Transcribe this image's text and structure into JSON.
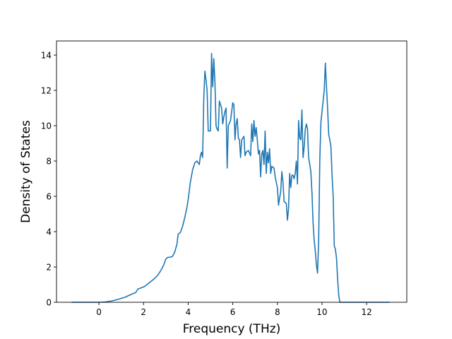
{
  "chart_data": {
    "type": "line",
    "title": "",
    "xlabel": "Frequency (THz)",
    "ylabel": "Density of States",
    "xlim": [
      -1.9,
      13.8
    ],
    "ylim": [
      0,
      14.8
    ],
    "xticks": [
      0,
      2,
      4,
      6,
      8,
      10,
      12
    ],
    "yticks": [
      0,
      2,
      4,
      6,
      8,
      10,
      12,
      14
    ],
    "grid": false,
    "legend": "none",
    "series": [
      {
        "color": "#1f77b4",
        "points": [
          [
            -1.2,
            0
          ],
          [
            0.0,
            0
          ],
          [
            0.3,
            0.02
          ],
          [
            0.6,
            0.08
          ],
          [
            0.9,
            0.18
          ],
          [
            1.2,
            0.3
          ],
          [
            1.4,
            0.42
          ],
          [
            1.55,
            0.5
          ],
          [
            1.65,
            0.55
          ],
          [
            1.75,
            0.75
          ],
          [
            1.9,
            0.82
          ],
          [
            2.05,
            0.9
          ],
          [
            2.2,
            1.05
          ],
          [
            2.35,
            1.2
          ],
          [
            2.5,
            1.35
          ],
          [
            2.65,
            1.55
          ],
          [
            2.8,
            1.85
          ],
          [
            2.9,
            2.1
          ],
          [
            3.0,
            2.45
          ],
          [
            3.1,
            2.55
          ],
          [
            3.2,
            2.55
          ],
          [
            3.3,
            2.6
          ],
          [
            3.4,
            2.85
          ],
          [
            3.5,
            3.3
          ],
          [
            3.55,
            3.85
          ],
          [
            3.6,
            3.9
          ],
          [
            3.65,
            3.95
          ],
          [
            3.75,
            4.3
          ],
          [
            3.85,
            4.8
          ],
          [
            3.95,
            5.4
          ],
          [
            4.0,
            5.8
          ],
          [
            4.1,
            6.8
          ],
          [
            4.2,
            7.5
          ],
          [
            4.3,
            7.9
          ],
          [
            4.4,
            8.0
          ],
          [
            4.5,
            7.8
          ],
          [
            4.55,
            8.3
          ],
          [
            4.6,
            8.5
          ],
          [
            4.65,
            8.2
          ],
          [
            4.7,
            11.5
          ],
          [
            4.75,
            13.1
          ],
          [
            4.8,
            12.6
          ],
          [
            4.85,
            12.0
          ],
          [
            4.9,
            9.7
          ],
          [
            5.0,
            9.7
          ],
          [
            5.05,
            14.1
          ],
          [
            5.1,
            12.2
          ],
          [
            5.15,
            13.8
          ],
          [
            5.2,
            12.5
          ],
          [
            5.25,
            10.0
          ],
          [
            5.3,
            9.8
          ],
          [
            5.35,
            9.7
          ],
          [
            5.4,
            11.4
          ],
          [
            5.5,
            11.0
          ],
          [
            5.55,
            10.1
          ],
          [
            5.6,
            10.5
          ],
          [
            5.65,
            10.8
          ],
          [
            5.7,
            11.0
          ],
          [
            5.75,
            7.6
          ],
          [
            5.8,
            10.0
          ],
          [
            5.9,
            10.3
          ],
          [
            6.0,
            11.3
          ],
          [
            6.05,
            11.2
          ],
          [
            6.1,
            9.2
          ],
          [
            6.15,
            10.1
          ],
          [
            6.2,
            10.4
          ],
          [
            6.25,
            9.3
          ],
          [
            6.3,
            9.2
          ],
          [
            6.35,
            8.2
          ],
          [
            6.4,
            9.2
          ],
          [
            6.5,
            9.4
          ],
          [
            6.55,
            8.3
          ],
          [
            6.6,
            8.5
          ],
          [
            6.7,
            8.6
          ],
          [
            6.8,
            8.3
          ],
          [
            6.85,
            10.1
          ],
          [
            6.9,
            9.1
          ],
          [
            6.95,
            10.3
          ],
          [
            7.0,
            9.4
          ],
          [
            7.05,
            9.9
          ],
          [
            7.1,
            9.2
          ],
          [
            7.15,
            8.4
          ],
          [
            7.2,
            8.6
          ],
          [
            7.25,
            7.1
          ],
          [
            7.3,
            8.4
          ],
          [
            7.35,
            8.6
          ],
          [
            7.4,
            7.8
          ],
          [
            7.45,
            9.7
          ],
          [
            7.5,
            7.3
          ],
          [
            7.55,
            8.5
          ],
          [
            7.6,
            7.9
          ],
          [
            7.65,
            8.7
          ],
          [
            7.7,
            7.3
          ],
          [
            7.75,
            7.7
          ],
          [
            7.85,
            7.6
          ],
          [
            7.9,
            7.1
          ],
          [
            7.95,
            6.8
          ],
          [
            8.0,
            6.5
          ],
          [
            8.05,
            5.5
          ],
          [
            8.1,
            5.9
          ],
          [
            8.15,
            6.3
          ],
          [
            8.2,
            7.4
          ],
          [
            8.25,
            6.8
          ],
          [
            8.3,
            5.7
          ],
          [
            8.4,
            5.6
          ],
          [
            8.45,
            4.65
          ],
          [
            8.5,
            5.3
          ],
          [
            8.55,
            7.3
          ],
          [
            8.6,
            6.5
          ],
          [
            8.65,
            7.2
          ],
          [
            8.7,
            7.2
          ],
          [
            8.75,
            7.0
          ],
          [
            8.8,
            7.3
          ],
          [
            8.85,
            8.0
          ],
          [
            8.9,
            6.7
          ],
          [
            8.95,
            10.3
          ],
          [
            9.0,
            9.3
          ],
          [
            9.05,
            9.2
          ],
          [
            9.1,
            10.9
          ],
          [
            9.15,
            8.2
          ],
          [
            9.2,
            8.8
          ],
          [
            9.25,
            9.8
          ],
          [
            9.3,
            10.1
          ],
          [
            9.35,
            9.8
          ],
          [
            9.4,
            8.2
          ],
          [
            9.5,
            7.4
          ],
          [
            9.55,
            6.2
          ],
          [
            9.6,
            4.5
          ],
          [
            9.65,
            3.5
          ],
          [
            9.7,
            2.9
          ],
          [
            9.75,
            2.1
          ],
          [
            9.8,
            1.65
          ],
          [
            9.85,
            3.5
          ],
          [
            9.9,
            8.0
          ],
          [
            9.95,
            10.2
          ],
          [
            10.0,
            10.8
          ],
          [
            10.05,
            11.4
          ],
          [
            10.1,
            12.0
          ],
          [
            10.15,
            13.55
          ],
          [
            10.2,
            12.2
          ],
          [
            10.25,
            11.0
          ],
          [
            10.3,
            9.5
          ],
          [
            10.35,
            9.2
          ],
          [
            10.4,
            8.8
          ],
          [
            10.45,
            7.2
          ],
          [
            10.5,
            6.0
          ],
          [
            10.55,
            3.2
          ],
          [
            10.6,
            3.0
          ],
          [
            10.65,
            2.5
          ],
          [
            10.7,
            1.3
          ],
          [
            10.75,
            0.4
          ],
          [
            10.8,
            0
          ],
          [
            11.0,
            0
          ],
          [
            13.0,
            0
          ]
        ]
      }
    ]
  }
}
